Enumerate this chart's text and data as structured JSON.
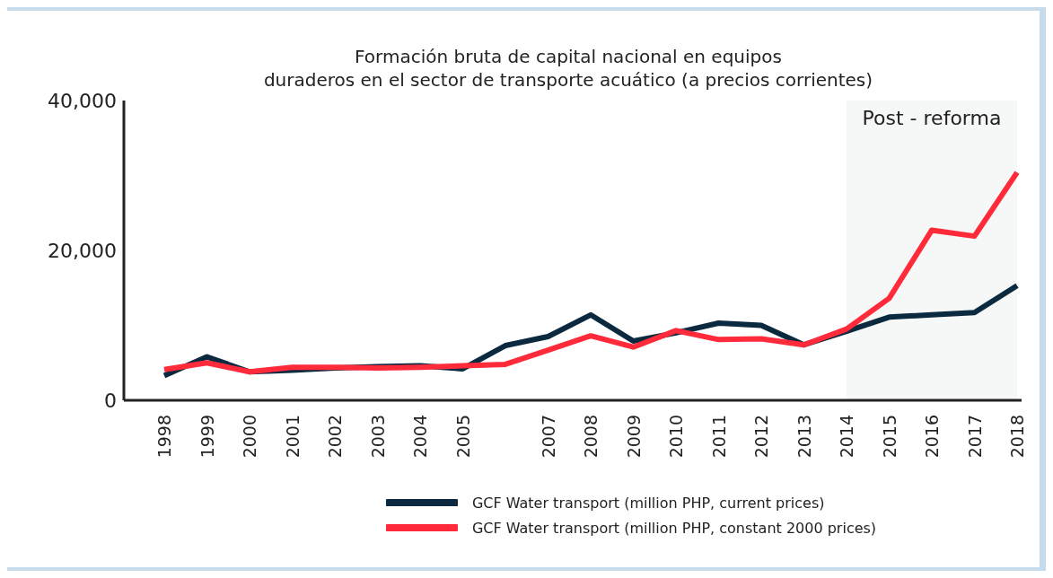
{
  "chart_data": {
    "type": "line",
    "title": "Formación bruta de capital nacional en equipos\nduraderos en el sector de transporte acuático (a precios corrientes)",
    "categories": [
      "1998",
      "1999",
      "2000",
      "2001",
      "2002",
      "2003",
      "2004",
      "2005",
      null,
      "2007",
      "2008",
      "2009",
      "2010",
      "2011",
      "2012",
      "2013",
      "2014",
      "2015",
      "2016",
      "2017",
      "2018"
    ],
    "series": [
      {
        "name": "GCF Water transport (million PHP, current prices)",
        "color": "#0b2a3f",
        "values": [
          3300,
          5800,
          3800,
          4000,
          4300,
          4500,
          4600,
          4200,
          7300,
          8500,
          11400,
          7900,
          9000,
          10300,
          10000,
          7400,
          9200,
          11100,
          11400,
          11700,
          15300
        ]
      },
      {
        "name": "GCF Water transport (million PHP, constant 2000 prices)",
        "color": "#ff2a3a",
        "values": [
          4100,
          5000,
          3800,
          4400,
          4400,
          4300,
          4400,
          4600,
          4800,
          6700,
          8600,
          7100,
          9300,
          8100,
          8200,
          7400,
          9500,
          13600,
          22700,
          21900,
          30400
        ]
      }
    ],
    "ylim": [
      0,
      40000
    ],
    "yticks": [
      {
        "value": 0,
        "label": "0"
      },
      {
        "value": 20000,
        "label": "20,000"
      },
      {
        "value": 40000,
        "label": "40,000"
      }
    ],
    "bands": [
      {
        "axis": "x",
        "from": "2014",
        "to": "2018",
        "label": "Post - reforma",
        "color": "#eef1f0"
      }
    ],
    "grid": false,
    "legend": "bottom",
    "marker": "none",
    "line_style": "solid"
  }
}
